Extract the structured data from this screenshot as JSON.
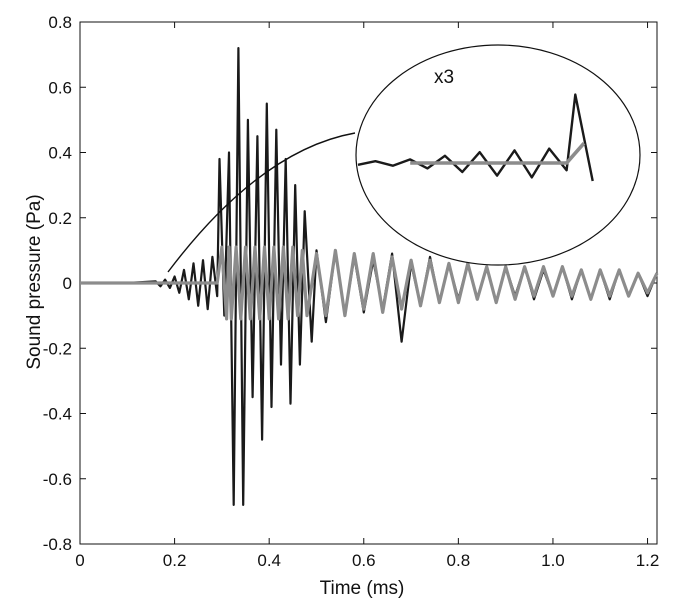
{
  "chart_data": {
    "type": "line",
    "xlabel": "Time (ms)",
    "ylabel": "Sound pressure (Pa)",
    "xlim": [
      0,
      1.22
    ],
    "ylim": [
      -0.8,
      0.8
    ],
    "x_ticks": [
      0,
      0.2,
      0.4,
      0.6,
      0.8,
      1.0,
      1.2
    ],
    "x_tick_labels": [
      "0",
      "0.2",
      "0.4",
      "0.6",
      "0.8",
      "1.0",
      "1.2"
    ],
    "y_ticks": [
      -0.8,
      -0.6,
      -0.4,
      -0.2,
      0,
      0.2,
      0.4,
      0.6,
      0.8
    ],
    "y_tick_labels": [
      "-0.8",
      "-0.6",
      "-0.4",
      "-0.2",
      "0",
      "0.2",
      "0.4",
      "0.6",
      "0.8"
    ],
    "grid": false,
    "legend": "none",
    "inset": {
      "label": "x3",
      "x_range": [
        0.17,
        0.3
      ],
      "magnification": 3
    },
    "series": [
      {
        "color": "#1a1a1a",
        "x": [
          0,
          0.1,
          0.16,
          0.17,
          0.18,
          0.19,
          0.2,
          0.21,
          0.22,
          0.23,
          0.24,
          0.25,
          0.26,
          0.27,
          0.28,
          0.29,
          0.295,
          0.305,
          0.315,
          0.325,
          0.335,
          0.345,
          0.355,
          0.365,
          0.375,
          0.385,
          0.395,
          0.405,
          0.415,
          0.425,
          0.435,
          0.445,
          0.455,
          0.465,
          0.475,
          0.49,
          0.5,
          0.52,
          0.54,
          0.56,
          0.58,
          0.6,
          0.62,
          0.64,
          0.66,
          0.68,
          0.7,
          0.72,
          0.74,
          0.76,
          0.78,
          0.8,
          0.82,
          0.84,
          0.86,
          0.88,
          0.9,
          0.92,
          0.94,
          0.96,
          0.98,
          1.0,
          1.02,
          1.04,
          1.06,
          1.08,
          1.1,
          1.12,
          1.14,
          1.16,
          1.18,
          1.2,
          1.22
        ],
        "y": [
          0,
          0,
          0.005,
          -0.01,
          0.01,
          -0.015,
          0.02,
          -0.03,
          0.04,
          -0.05,
          0.06,
          -0.07,
          0.07,
          -0.08,
          0.08,
          -0.04,
          0.38,
          -0.1,
          0.4,
          -0.68,
          0.72,
          -0.68,
          0.5,
          -0.35,
          0.45,
          -0.48,
          0.55,
          -0.38,
          0.47,
          -0.25,
          0.38,
          -0.37,
          0.3,
          -0.25,
          0.22,
          -0.18,
          0.1,
          -0.12,
          0.1,
          -0.1,
          0.08,
          -0.09,
          0.07,
          -0.08,
          0.09,
          -0.18,
          0.06,
          -0.07,
          0.08,
          -0.06,
          0.06,
          -0.05,
          0.06,
          -0.05,
          0.05,
          -0.06,
          0.05,
          -0.04,
          0.05,
          -0.05,
          0.04,
          -0.04,
          0.05,
          -0.05,
          0.04,
          -0.05,
          0.04,
          -0.05,
          0.04,
          -0.04,
          0.03,
          -0.04,
          0.03
        ]
      },
      {
        "color": "#8c8c8c",
        "x": [
          0,
          0.1,
          0.2,
          0.29,
          0.3,
          0.31,
          0.315,
          0.32,
          0.33,
          0.34,
          0.35,
          0.36,
          0.37,
          0.38,
          0.39,
          0.4,
          0.41,
          0.42,
          0.43,
          0.44,
          0.45,
          0.46,
          0.47,
          0.48,
          0.5,
          0.52,
          0.54,
          0.56,
          0.58,
          0.6,
          0.62,
          0.64,
          0.66,
          0.68,
          0.7,
          0.72,
          0.74,
          0.76,
          0.78,
          0.8,
          0.82,
          0.84,
          0.86,
          0.88,
          0.9,
          0.92,
          0.94,
          0.96,
          0.98,
          1.0,
          1.02,
          1.04,
          1.06,
          1.08,
          1.1,
          1.12,
          1.14,
          1.16,
          1.18,
          1.2,
          1.22
        ],
        "y": [
          0,
          0,
          0,
          0,
          0.11,
          -0.11,
          0.11,
          -0.11,
          0.11,
          -0.11,
          0.11,
          -0.11,
          0.11,
          -0.11,
          0.11,
          -0.11,
          0.11,
          -0.11,
          0.11,
          -0.11,
          0.11,
          -0.1,
          0.1,
          -0.1,
          0.09,
          -0.1,
          0.1,
          -0.1,
          0.09,
          -0.08,
          0.09,
          -0.09,
          0.08,
          -0.08,
          0.07,
          -0.07,
          0.07,
          -0.06,
          0.06,
          -0.06,
          0.06,
          -0.05,
          0.05,
          -0.06,
          0.05,
          -0.05,
          0.05,
          -0.04,
          0.05,
          -0.04,
          0.05,
          -0.04,
          0.04,
          -0.05,
          0.04,
          -0.04,
          0.04,
          -0.04,
          0.03,
          -0.03,
          0.03
        ]
      }
    ]
  }
}
